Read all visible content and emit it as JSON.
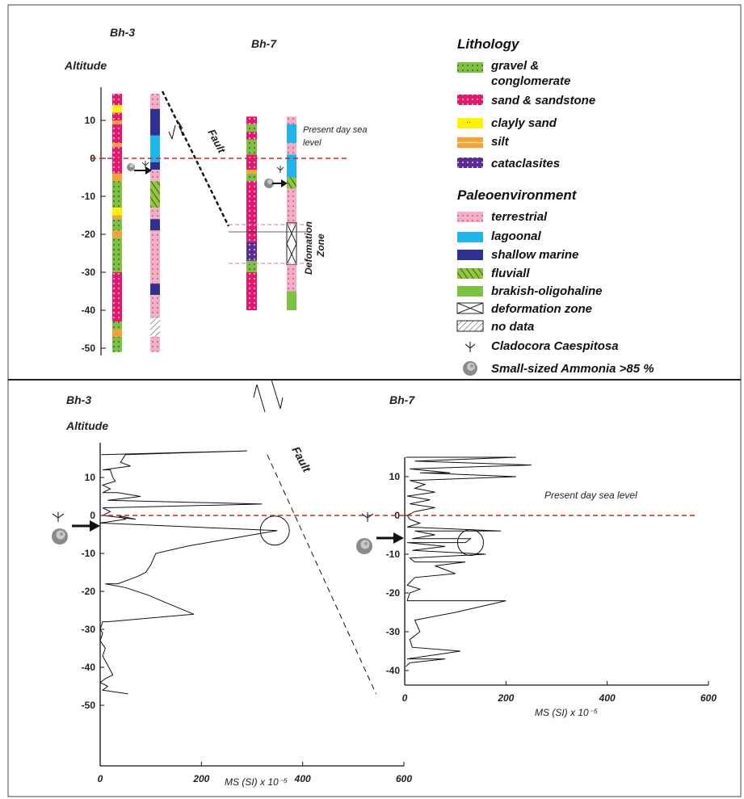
{
  "colors": {
    "gravel": "#7cc242",
    "sand": "#e6176f",
    "clayly_sand": "#fff200",
    "silt": "#f7a234",
    "cataclasites": "#5c2d91",
    "terrestrial": "#f4aec6",
    "lagoonal": "#1fb5ea",
    "shallow_marine": "#2e3192",
    "fluviall": "#8dc63f",
    "brakish": "#7cc242",
    "sea_level": "#d2232a",
    "line": "#111111"
  },
  "top": {
    "titles": {
      "bh3": "Bh-3",
      "bh7": "Bh-7",
      "altitude": "Altitude"
    },
    "yticks": [
      10,
      0,
      -10,
      -20,
      -30,
      -40,
      -50
    ],
    "fault": "Fault",
    "sea_level": [
      "Present day sea",
      "level"
    ],
    "deformation": [
      "Defomation",
      "Zone"
    ],
    "bh3_lith": [
      {
        "top": 17,
        "bottom": 14,
        "unit": "sand"
      },
      {
        "top": 14,
        "bottom": 12,
        "unit": "clayly_sand"
      },
      {
        "top": 12,
        "bottom": 10,
        "unit": "sand"
      },
      {
        "top": 10,
        "bottom": 9,
        "unit": "silt"
      },
      {
        "top": 9,
        "bottom": 4,
        "unit": "sand"
      },
      {
        "top": 4,
        "bottom": 3,
        "unit": "silt"
      },
      {
        "top": 3,
        "bottom": -4,
        "unit": "sand"
      },
      {
        "top": -4,
        "bottom": -6,
        "unit": "silt"
      },
      {
        "top": -6,
        "bottom": -13,
        "unit": "gravel"
      },
      {
        "top": -13,
        "bottom": -15,
        "unit": "clayly_sand"
      },
      {
        "top": -15,
        "bottom": -16,
        "unit": "silt"
      },
      {
        "top": -16,
        "bottom": -19,
        "unit": "gravel"
      },
      {
        "top": -19,
        "bottom": -21,
        "unit": "silt"
      },
      {
        "top": -21,
        "bottom": -30,
        "unit": "gravel"
      },
      {
        "top": -30,
        "bottom": -43,
        "unit": "sand"
      },
      {
        "top": -43,
        "bottom": -45,
        "unit": "gravel"
      },
      {
        "top": -45,
        "bottom": -47,
        "unit": "silt"
      },
      {
        "top": -47,
        "bottom": -51,
        "unit": "gravel"
      }
    ],
    "bh3_env": [
      {
        "top": 17,
        "bottom": 13,
        "unit": "terrestrial"
      },
      {
        "top": 13,
        "bottom": 6,
        "unit": "shallow_marine"
      },
      {
        "top": 6,
        "bottom": -1,
        "unit": "lagoonal"
      },
      {
        "top": -1,
        "bottom": -3,
        "unit": "shallow_marine"
      },
      {
        "top": -3,
        "bottom": -6,
        "unit": "terrestrial"
      },
      {
        "top": -6,
        "bottom": -13,
        "unit": "fluviall"
      },
      {
        "top": -13,
        "bottom": -16,
        "unit": "terrestrial"
      },
      {
        "top": -16,
        "bottom": -19,
        "unit": "shallow_marine"
      },
      {
        "top": -19,
        "bottom": -33,
        "unit": "terrestrial"
      },
      {
        "top": -33,
        "bottom": -36,
        "unit": "shallow_marine"
      },
      {
        "top": -36,
        "bottom": -42,
        "unit": "terrestrial"
      },
      {
        "top": -42,
        "bottom": -47,
        "unit": "no_data"
      },
      {
        "top": -47,
        "bottom": -51,
        "unit": "terrestrial"
      }
    ],
    "bh7_lith": [
      {
        "top": 11,
        "bottom": 9,
        "unit": "sand"
      },
      {
        "top": 9,
        "bottom": 7,
        "unit": "gravel"
      },
      {
        "top": 7,
        "bottom": 5,
        "unit": "sand"
      },
      {
        "top": 5,
        "bottom": 1,
        "unit": "gravel"
      },
      {
        "top": 1,
        "bottom": -3,
        "unit": "sand"
      },
      {
        "top": -3,
        "bottom": -4,
        "unit": "silt"
      },
      {
        "top": -4,
        "bottom": -6,
        "unit": "gravel"
      },
      {
        "top": -6,
        "bottom": -22,
        "unit": "sand"
      },
      {
        "top": -22,
        "bottom": -27,
        "unit": "cataclasites"
      },
      {
        "top": -27,
        "bottom": -30,
        "unit": "gravel"
      },
      {
        "top": -30,
        "bottom": -40,
        "unit": "sand"
      }
    ],
    "bh7_env": [
      {
        "top": 11,
        "bottom": 9,
        "unit": "terrestrial"
      },
      {
        "top": 9,
        "bottom": 4,
        "unit": "lagoonal"
      },
      {
        "top": 4,
        "bottom": 1,
        "unit": "terrestrial"
      },
      {
        "top": 1,
        "bottom": -5,
        "unit": "lagoonal"
      },
      {
        "top": -5,
        "bottom": -8,
        "unit": "fluviall"
      },
      {
        "top": -8,
        "bottom": -17,
        "unit": "terrestrial"
      },
      {
        "top": -17,
        "bottom": -28,
        "unit": "deformation_zone"
      },
      {
        "top": -28,
        "bottom": -35,
        "unit": "terrestrial"
      },
      {
        "top": -35,
        "bottom": -40,
        "unit": "brakish"
      }
    ]
  },
  "legend": {
    "lithology_title": "Lithology",
    "lithology": [
      {
        "unit": "gravel",
        "label": [
          "gravel &",
          "conglomerate"
        ]
      },
      {
        "unit": "sand",
        "label": [
          "sand & sandstone"
        ]
      },
      {
        "unit": "clayly_sand",
        "label": [
          "clayly sand"
        ]
      },
      {
        "unit": "silt",
        "label": [
          "silt"
        ]
      },
      {
        "unit": "cataclasites",
        "label": [
          "cataclasites"
        ]
      }
    ],
    "paleo_title": "Paleoenvironment",
    "paleo": [
      {
        "unit": "terrestrial",
        "label": "terrestrial"
      },
      {
        "unit": "lagoonal",
        "label": "lagoonal"
      },
      {
        "unit": "shallow_marine",
        "label": "shallow marine"
      },
      {
        "unit": "fluviall",
        "label": "fluviall"
      },
      {
        "unit": "brakish",
        "label": "brakish-oligohaline"
      },
      {
        "unit": "deformation_zone",
        "label": "deformation zone"
      },
      {
        "unit": "no_data",
        "label": "no data"
      },
      {
        "unit": "coral",
        "label": "Cladocora Caespitosa"
      },
      {
        "unit": "ammonia",
        "label": "Small-sized Ammonia >85 %"
      }
    ]
  },
  "bottom": {
    "titles": {
      "bh3": "Bh-3",
      "bh7": "Bh-7",
      "altitude": "Altitude"
    },
    "fault": "Fault",
    "sea_level": "Present day sea level",
    "xlabel_bh3": "MS (SI) x 10⁻⁵",
    "xlabel_bh7": "MS (SI)  x 10⁻⁵"
  },
  "chart_data": [
    {
      "type": "line",
      "name": "Bh-3",
      "xlabel": "MS (SI) x 10⁻⁵",
      "ylabel": "Altitude",
      "xlim": [
        0,
        600
      ],
      "ylim": [
        -60,
        17
      ],
      "xticks": [
        0,
        200,
        400,
        600
      ],
      "yticks": [
        10,
        0,
        -10,
        -20,
        -30,
        -40,
        -50
      ],
      "points": [
        [
          2,
          16
        ],
        [
          290,
          17
        ],
        [
          50,
          16
        ],
        [
          40,
          14
        ],
        [
          60,
          13
        ],
        [
          5,
          12
        ],
        [
          20,
          12
        ],
        [
          25,
          10
        ],
        [
          30,
          9
        ],
        [
          5,
          8
        ],
        [
          20,
          7
        ],
        [
          5,
          6
        ],
        [
          35,
          6
        ],
        [
          80,
          5
        ],
        [
          15,
          4
        ],
        [
          320,
          3
        ],
        [
          5,
          2
        ],
        [
          20,
          1
        ],
        [
          5,
          0
        ],
        [
          70,
          -1
        ],
        [
          35,
          0
        ],
        [
          50,
          -1
        ],
        [
          0,
          -2
        ],
        [
          350,
          -4
        ],
        [
          175,
          -8
        ],
        [
          110,
          -10
        ],
        [
          100,
          -13
        ],
        [
          90,
          -15
        ],
        [
          75,
          -16
        ],
        [
          35,
          -18
        ],
        [
          10,
          -18
        ],
        [
          50,
          -19
        ],
        [
          95,
          -21
        ],
        [
          130,
          -23
        ],
        [
          185,
          -26
        ],
        [
          15,
          -28
        ],
        [
          5,
          -28
        ],
        [
          0,
          -30
        ],
        [
          5,
          -31
        ],
        [
          0,
          -33
        ],
        [
          10,
          -35
        ],
        [
          5,
          -37
        ],
        [
          25,
          -42
        ],
        [
          10,
          -43
        ],
        [
          0,
          -44
        ],
        [
          15,
          -45
        ],
        [
          5,
          -46
        ],
        [
          55,
          -47
        ]
      ],
      "circle_at": [
        345,
        -4
      ],
      "sea_level_alt": 0,
      "fault_line": [
        [
          330,
          16
        ],
        [
          545,
          -47
        ]
      ]
    },
    {
      "type": "line",
      "name": "Bh-7",
      "xlabel": "MS (SI)  x 10⁻⁵",
      "xlim": [
        0,
        600
      ],
      "ylim": [
        -44,
        17
      ],
      "xticks": [
        0,
        200,
        400,
        600
      ],
      "yticks": [
        10,
        0,
        -10,
        -20,
        -30,
        -40
      ],
      "points": [
        [
          2,
          15
        ],
        [
          220,
          15
        ],
        [
          20,
          14
        ],
        [
          250,
          13
        ],
        [
          10,
          12
        ],
        [
          90,
          11
        ],
        [
          30,
          11
        ],
        [
          220,
          10
        ],
        [
          10,
          9
        ],
        [
          40,
          8
        ],
        [
          20,
          7
        ],
        [
          60,
          6
        ],
        [
          5,
          5
        ],
        [
          50,
          4
        ],
        [
          10,
          3
        ],
        [
          60,
          2
        ],
        [
          20,
          1
        ],
        [
          5,
          0
        ],
        [
          10,
          -1
        ],
        [
          30,
          -2
        ],
        [
          5,
          -3
        ],
        [
          190,
          -4
        ],
        [
          20,
          -4
        ],
        [
          60,
          -5
        ],
        [
          15,
          -6
        ],
        [
          130,
          -6
        ],
        [
          120,
          -7
        ],
        [
          5,
          -7
        ],
        [
          80,
          -8
        ],
        [
          15,
          -9
        ],
        [
          160,
          -10
        ],
        [
          10,
          -11
        ],
        [
          20,
          -12
        ],
        [
          120,
          -12
        ],
        [
          60,
          -13
        ],
        [
          100,
          -15
        ],
        [
          20,
          -16
        ],
        [
          5,
          -18
        ],
        [
          30,
          -19
        ],
        [
          10,
          -20
        ],
        [
          5,
          -22
        ],
        [
          200,
          -22
        ],
        [
          100,
          -25
        ],
        [
          20,
          -27
        ],
        [
          30,
          -30
        ],
        [
          10,
          -32
        ],
        [
          15,
          -34
        ],
        [
          110,
          -35
        ],
        [
          5,
          -37
        ],
        [
          80,
          -37
        ],
        [
          10,
          -38
        ],
        [
          2,
          -39
        ]
      ],
      "circle_at": [
        130,
        -7
      ],
      "sea_level_alt": 0
    }
  ]
}
